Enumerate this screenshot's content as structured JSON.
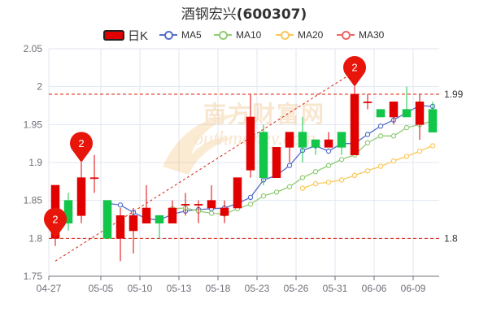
{
  "title": {
    "name": "酒钢宏兴",
    "code": "(600307)"
  },
  "legend": [
    {
      "label": "日K",
      "color": "#e00000",
      "kind": "box"
    },
    {
      "label": "MA5",
      "color": "#5470c6",
      "kind": "line"
    },
    {
      "label": "MA10",
      "color": "#91cc75",
      "kind": "line"
    },
    {
      "label": "MA20",
      "color": "#fac858",
      "kind": "line"
    },
    {
      "label": "MA30",
      "color": "#ee6666",
      "kind": "line"
    }
  ],
  "colors": {
    "up": "#e00000",
    "down": "#11c648",
    "grid": "#e0e6f1",
    "axis": "#6e7079"
  },
  "chart_data": {
    "type": "candlestick",
    "title": "酒钢宏兴(600307)",
    "ylim": [
      1.75,
      2.05
    ],
    "yticks": [
      1.75,
      1.8,
      1.85,
      1.9,
      1.95,
      2,
      2.05
    ],
    "ytick_labels": [
      "1.75",
      "1.8",
      "1.85",
      "1.9",
      "1.95",
      "2",
      "2.05"
    ],
    "xtick_labels": [
      {
        "label": "04-27",
        "index": 0
      },
      {
        "label": "05-05",
        "index": 4
      },
      {
        "label": "05-10",
        "index": 7
      },
      {
        "label": "05-13",
        "index": 10
      },
      {
        "label": "05-18",
        "index": 13
      },
      {
        "label": "05-23",
        "index": 16
      },
      {
        "label": "05-26",
        "index": 19
      },
      {
        "label": "05-31",
        "index": 22
      },
      {
        "label": "06-06",
        "index": 25
      },
      {
        "label": "06-09",
        "index": 28
      }
    ],
    "candles": [
      {
        "o": 1.8,
        "c": 1.87,
        "h": 1.87,
        "l": 1.79
      },
      {
        "o": 1.85,
        "c": 1.82,
        "h": 1.86,
        "l": 1.81
      },
      {
        "o": 1.83,
        "c": 1.88,
        "h": 1.9,
        "l": 1.82
      },
      {
        "o": 1.88,
        "c": 1.88,
        "h": 1.91,
        "l": 1.86
      },
      {
        "o": 1.85,
        "c": 1.8,
        "h": 1.85,
        "l": 1.8
      },
      {
        "o": 1.8,
        "c": 1.83,
        "h": 1.84,
        "l": 1.77
      },
      {
        "o": 1.81,
        "c": 1.83,
        "h": 1.84,
        "l": 1.78
      },
      {
        "o": 1.82,
        "c": 1.84,
        "h": 1.87,
        "l": 1.82
      },
      {
        "o": 1.83,
        "c": 1.82,
        "h": 1.83,
        "l": 1.8
      },
      {
        "o": 1.82,
        "c": 1.84,
        "h": 1.85,
        "l": 1.82
      },
      {
        "o": 1.845,
        "c": 1.845,
        "h": 1.86,
        "l": 1.83
      },
      {
        "o": 1.845,
        "c": 1.845,
        "h": 1.85,
        "l": 1.82
      },
      {
        "o": 1.84,
        "c": 1.85,
        "h": 1.87,
        "l": 1.84
      },
      {
        "o": 1.83,
        "c": 1.84,
        "h": 1.85,
        "l": 1.82
      },
      {
        "o": 1.84,
        "c": 1.88,
        "h": 1.88,
        "l": 1.84
      },
      {
        "o": 1.89,
        "c": 1.96,
        "h": 1.99,
        "l": 1.88
      },
      {
        "o": 1.94,
        "c": 1.88,
        "h": 1.95,
        "l": 1.87
      },
      {
        "o": 1.88,
        "c": 1.92,
        "h": 1.92,
        "l": 1.88
      },
      {
        "o": 1.92,
        "c": 1.94,
        "h": 1.94,
        "l": 1.9
      },
      {
        "o": 1.94,
        "c": 1.92,
        "h": 1.96,
        "l": 1.9
      },
      {
        "o": 1.93,
        "c": 1.92,
        "h": 1.93,
        "l": 1.91
      },
      {
        "o": 1.92,
        "c": 1.93,
        "h": 1.94,
        "l": 1.92
      },
      {
        "o": 1.94,
        "c": 1.92,
        "h": 1.94,
        "l": 1.91
      },
      {
        "o": 1.91,
        "c": 1.99,
        "h": 2.0,
        "l": 1.91
      },
      {
        "o": 1.98,
        "c": 1.98,
        "h": 1.99,
        "l": 1.97
      },
      {
        "o": 1.97,
        "c": 1.96,
        "h": 1.97,
        "l": 1.96
      },
      {
        "o": 1.96,
        "c": 1.98,
        "h": 1.98,
        "l": 1.95
      },
      {
        "o": 1.97,
        "c": 1.96,
        "h": 2.0,
        "l": 1.96
      },
      {
        "o": 1.95,
        "c": 1.98,
        "h": 1.99,
        "l": 1.93
      },
      {
        "o": 1.97,
        "c": 1.94,
        "h": 1.98,
        "l": 1.94
      }
    ],
    "series": [
      {
        "name": "MA5",
        "color": "#5470c6",
        "values": [
          null,
          null,
          null,
          null,
          1.846,
          1.844,
          1.834,
          1.826,
          1.824,
          1.832,
          1.836,
          1.838,
          1.839,
          1.84,
          1.846,
          1.854,
          1.877,
          1.883,
          1.896,
          1.916,
          1.922,
          1.915,
          1.925,
          1.925,
          1.937,
          1.948,
          1.956,
          1.966,
          1.975,
          1.974
        ]
      },
      {
        "name": "MA10",
        "color": "#91cc75",
        "values": [
          null,
          null,
          null,
          null,
          null,
          null,
          null,
          null,
          null,
          1.839,
          1.84,
          1.836,
          1.833,
          1.832,
          1.839,
          1.845,
          1.856,
          1.861,
          1.868,
          1.88,
          1.888,
          1.896,
          1.904,
          1.91,
          1.926,
          1.935,
          1.935,
          1.946,
          1.95,
          1.955
        ]
      },
      {
        "name": "MA20",
        "color": "#fac858",
        "values": [
          null,
          null,
          null,
          null,
          null,
          null,
          null,
          null,
          null,
          null,
          null,
          null,
          null,
          null,
          null,
          null,
          null,
          null,
          null,
          1.866,
          1.872,
          1.874,
          1.877,
          1.883,
          1.889,
          1.895,
          1.902,
          1.908,
          1.915,
          1.922
        ]
      },
      {
        "name": "MA30",
        "color": "#ee6666",
        "values": []
      }
    ],
    "markers": [
      {
        "label": "2",
        "index": 0,
        "value": 1.8
      },
      {
        "label": "2",
        "index": 2,
        "value": 1.9
      },
      {
        "label": "2",
        "index": 23,
        "value": 2.0
      }
    ],
    "reference_lines": [
      {
        "value": 1.99,
        "label": "1.99"
      },
      {
        "value": 1.8,
        "label": "1.8"
      }
    ],
    "trend_line": {
      "from_index": 0,
      "from_value": 1.77,
      "to_index": 23,
      "to_value": 2.02
    },
    "watermark": "南方财富网"
  }
}
